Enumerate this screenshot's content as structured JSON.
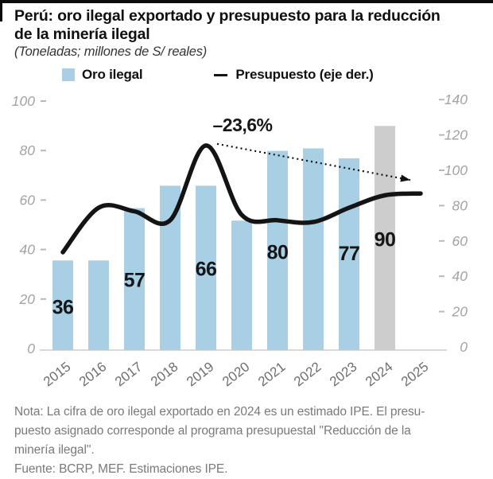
{
  "header": {
    "title_lines": [
      "Perú: oro ilegal exportado y presupuesto para la reducción",
      "de la minería ilegal"
    ],
    "subtitle": "(Toneladas; millones de S/ reales)"
  },
  "legend": {
    "bars_label": "Oro ilegal",
    "line_label": "Presupuesto (eje der.)"
  },
  "chart_data": {
    "type": "bar+line combo",
    "categories": [
      "2015",
      "2016",
      "2017",
      "2018",
      "2019",
      "2020",
      "2021",
      "2022",
      "2023",
      "2024",
      "2025"
    ],
    "series": [
      {
        "name": "Oro ilegal",
        "type": "bar",
        "axis": "left",
        "values": [
          36,
          36,
          57,
          66,
          66,
          52,
          80,
          81,
          77,
          90,
          null
        ],
        "data_labels": [
          "36",
          null,
          "57",
          null,
          "66",
          null,
          "80",
          null,
          "77",
          "90",
          null
        ],
        "estimate_index": 9
      },
      {
        "name": "Presupuesto (eje der.)",
        "type": "line",
        "axis": "right",
        "values": [
          55,
          80,
          78,
          73,
          115,
          76,
          73,
          72,
          80,
          87,
          88
        ]
      }
    ],
    "axes": {
      "left": {
        "min": 0,
        "max": 100,
        "step": 20
      },
      "right": {
        "min": 0,
        "max": 140,
        "step": 20
      }
    },
    "annotation": {
      "text": "–23,6%",
      "from_category": "2019",
      "to_category": "2025"
    },
    "grid": false,
    "legend_position": "top",
    "colors": {
      "bar": "#a9cfe4",
      "bar_estimate": "#cdcdcd",
      "line": "#141414",
      "axis_text": "#a3a3a3",
      "year_text": "#6e6e6e",
      "baseline": "#d9d9d9",
      "value_label": "#161616"
    }
  },
  "note": {
    "lines": [
      "Nota: La cifra de oro ilegal exportado en 2024 es un estimado IPE. El presu-",
      "puesto asignado corresponde al programa presupuestal ''Reducción de la",
      "minería ilegal''."
    ],
    "source": "Fuente: BCRP, MEF. Estimaciones IPE."
  }
}
